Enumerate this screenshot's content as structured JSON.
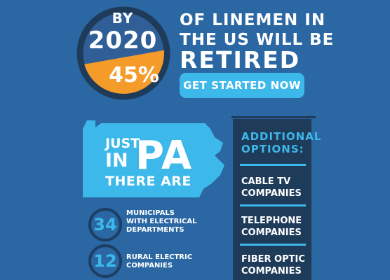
{
  "hero": {
    "by": "BY",
    "year": "2020",
    "percent": "45%",
    "percent_value": 0.45,
    "headline_line1": "OF LINEMEN IN",
    "headline_line2": "THE US WILL BE",
    "headline_line3": "RETIRED"
  },
  "cta": {
    "label": "GET STARTED NOW"
  },
  "state": {
    "just": "JUST",
    "in": "IN",
    "abbr": "PA",
    "there_are": "THERE ARE"
  },
  "stats": [
    {
      "value": "34",
      "label_line1": "MUNICIPALS",
      "label_line2": "WITH ELECTRICAL",
      "label_line3": "DEPARTMENTS"
    },
    {
      "value": "12",
      "label_line1": "RURAL ELECTRIC",
      "label_line2": "COMPANIES"
    }
  ],
  "options": {
    "title_line1": "ADDITIONAL",
    "title_line2": "OPTIONS:",
    "items": [
      {
        "line1": "CABLE TV",
        "line2": "COMPANIES"
      },
      {
        "line1": "TELEPHONE",
        "line2": "COMPANIES"
      },
      {
        "line1": "FIBER OPTIC",
        "line2": "COMPANIES"
      }
    ]
  },
  "colors": {
    "background": "#2a67a3",
    "accent_blue": "#3db8ea",
    "accent_orange": "#f59b2a",
    "dark_navy": "#1f3b5a"
  }
}
